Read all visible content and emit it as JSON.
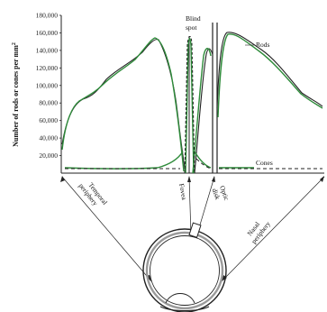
{
  "chart_data": {
    "type": "line",
    "ylabel": "Number of rods or cones per mm",
    "ylabel_sup": "2",
    "y_ticks": [
      "20,000",
      "40,000",
      "60,000",
      "80,000",
      "100,000",
      "120,000",
      "140,000",
      "160,000",
      "180,000"
    ],
    "ylim": [
      0,
      180000
    ],
    "grid": false,
    "annotations": {
      "rods": "Rods",
      "cones": "Cones",
      "blind_spot_line1": "Blind",
      "blind_spot_line2": "spot"
    },
    "region_labels": {
      "temporal_line1": "Temporal",
      "temporal_line2": "periphery",
      "fovea": "Fovea",
      "optic_line1": "Optic",
      "optic_line2": "disk",
      "nasal_line1": "Nasal",
      "nasal_line2": "periphery"
    },
    "colors": {
      "series_a": "#2e8b3a",
      "series_b": "#222222",
      "axis": "#222222"
    },
    "series": [
      {
        "name": "Rods",
        "points": [
          [
            0.0,
            40000
          ],
          [
            0.05,
            72000
          ],
          [
            0.1,
            83000
          ],
          [
            0.15,
            95000
          ],
          [
            0.2,
            112000
          ],
          [
            0.28,
            128000
          ],
          [
            0.33,
            150000
          ],
          [
            0.36,
            157000
          ],
          [
            0.4,
            128000
          ],
          [
            0.43,
            95000
          ],
          [
            0.46,
            50000
          ],
          [
            0.48,
            0
          ],
          [
            0.5,
            0
          ],
          [
            0.52,
            50000
          ],
          [
            0.55,
            130000
          ],
          [
            0.58,
            145000
          ],
          [
            0.6,
            140000
          ],
          [
            0.62,
            0
          ],
          [
            0.65,
            0
          ],
          [
            0.66,
            148000
          ],
          [
            0.7,
            158000
          ],
          [
            0.8,
            148000
          ],
          [
            0.9,
            118000
          ],
          [
            0.97,
            95000
          ],
          [
            1.0,
            82000
          ]
        ]
      },
      {
        "name": "Cones",
        "points": [
          [
            0.0,
            8000
          ],
          [
            0.1,
            7800
          ],
          [
            0.2,
            7500
          ],
          [
            0.3,
            7000
          ],
          [
            0.4,
            8000
          ],
          [
            0.45,
            18000
          ],
          [
            0.48,
            60000
          ],
          [
            0.49,
            150000
          ],
          [
            0.5,
            60000
          ],
          [
            0.53,
            15000
          ],
          [
            0.58,
            8000
          ],
          [
            0.62,
            0
          ],
          [
            0.65,
            0
          ],
          [
            0.7,
            6500
          ],
          [
            0.8,
            6000
          ],
          [
            0.9,
            5500
          ],
          [
            1.0,
            5000
          ]
        ]
      }
    ]
  }
}
